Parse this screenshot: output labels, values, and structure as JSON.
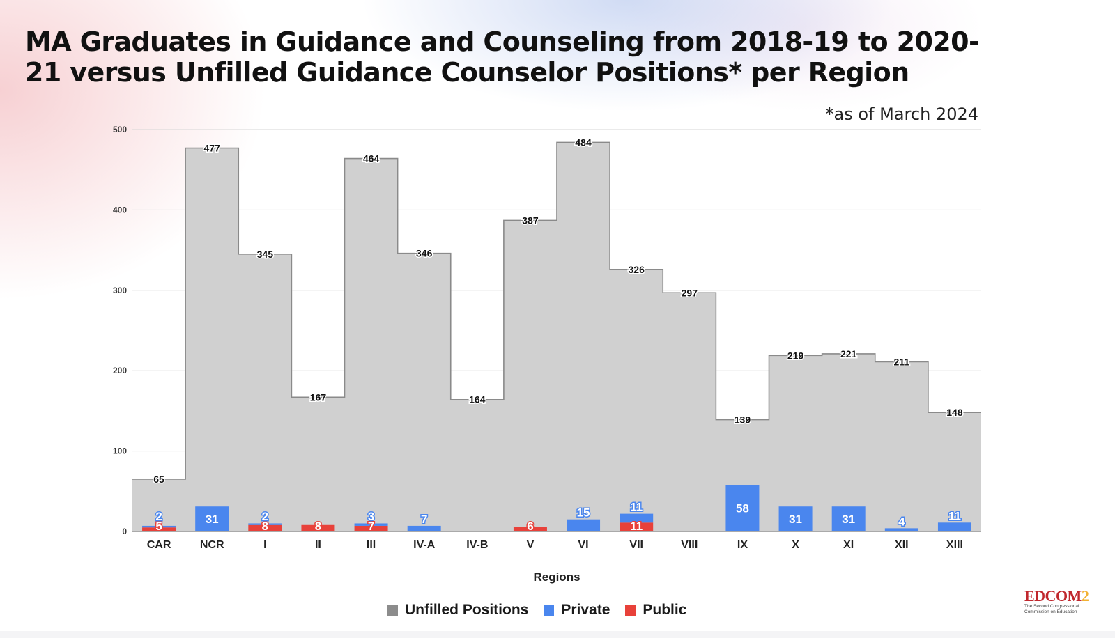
{
  "title": "MA Graduates in Guidance and Counseling from 2018-19 to 2020-21 versus Unfilled Guidance Counselor Positions* per Region",
  "subtitle": "*as of March 2024",
  "logo": {
    "word": "EDCOM",
    "number": "2",
    "tagline": "The Second Congressional Commission on Education"
  },
  "colors": {
    "unfilled": "#cccccc",
    "unfilled_line": "#8a8a8a",
    "private": "#4a86ee",
    "public": "#e8413a",
    "grid": "#d6d6d6"
  },
  "chart_data": {
    "type": "bar",
    "xlabel": "Regions",
    "ylabel": "",
    "ylim": [
      0,
      500
    ],
    "yticks": [
      0,
      100,
      200,
      300,
      400,
      500
    ],
    "grid": true,
    "legend_position": "bottom-center",
    "categories": [
      "CAR",
      "NCR",
      "I",
      "II",
      "III",
      "IV-A",
      "IV-B",
      "V",
      "VI",
      "VII",
      "VIII",
      "IX",
      "X",
      "XI",
      "XII",
      "XIII"
    ],
    "series": [
      {
        "name": "Unfilled Positions",
        "style": "stepped-area",
        "values": [
          65,
          477,
          345,
          167,
          464,
          346,
          164,
          387,
          484,
          326,
          297,
          139,
          219,
          221,
          211,
          148
        ]
      },
      {
        "name": "Private",
        "style": "stacked-bar",
        "values": [
          2,
          31,
          2,
          0,
          3,
          7,
          0,
          0,
          15,
          11,
          0,
          58,
          31,
          31,
          4,
          11
        ]
      },
      {
        "name": "Public",
        "style": "stacked-bar",
        "values": [
          5,
          0,
          8,
          8,
          7,
          0,
          0,
          6,
          0,
          11,
          0,
          0,
          0,
          0,
          0,
          0
        ]
      }
    ]
  }
}
